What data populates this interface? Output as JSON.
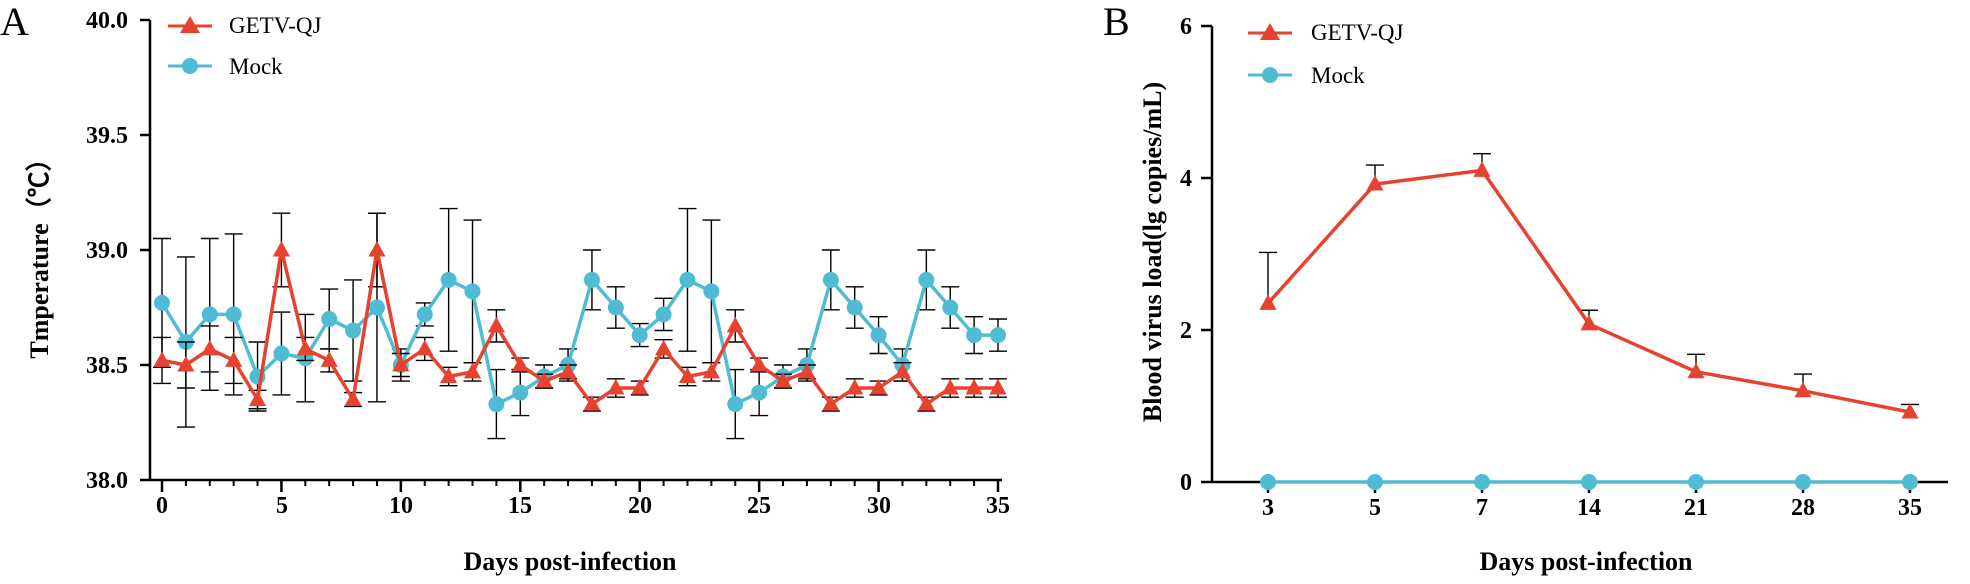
{
  "colors": {
    "getv": "#E5432F",
    "mock": "#4FBCD4",
    "axis": "#000000"
  },
  "chart_data": [
    {
      "panel_label": "A",
      "type": "line",
      "xlabel": "Days post-infection",
      "ylabel": "Tmperature（℃）",
      "xlim": [
        0,
        35
      ],
      "ylim": [
        38.0,
        40.0
      ],
      "xticks": [
        0,
        5,
        10,
        15,
        20,
        25,
        30,
        35
      ],
      "xtick_labels": [
        "0",
        "5",
        "10",
        "15",
        "20",
        "25",
        "30",
        "35"
      ],
      "yticks": [
        38.0,
        38.5,
        39.0,
        39.5,
        40.0
      ],
      "ytick_labels": [
        "38.0",
        "38.5",
        "39.0",
        "39.5",
        "40.0"
      ],
      "grid": false,
      "legend_position": "top-left",
      "x": [
        0,
        1,
        2,
        3,
        4,
        5,
        6,
        7,
        8,
        9,
        10,
        11,
        12,
        13,
        14,
        15,
        16,
        17,
        18,
        19,
        20,
        21,
        22,
        23,
        24,
        25,
        26,
        27,
        28,
        29,
        30,
        31,
        32,
        33,
        34,
        35
      ],
      "series": [
        {
          "name": "GETV-QJ",
          "marker": "triangle",
          "values": [
            38.52,
            38.5,
            38.57,
            38.52,
            38.35,
            39.0,
            38.57,
            38.52,
            38.35,
            39.0,
            38.5,
            38.57,
            38.45,
            38.47,
            38.67,
            38.5,
            38.43,
            38.47,
            38.33,
            38.4,
            38.4,
            38.57,
            38.45,
            38.47,
            38.67,
            38.5,
            38.43,
            38.47,
            38.33,
            38.4,
            38.4,
            38.47,
            38.33,
            38.4,
            38.4,
            38.4
          ],
          "errors": [
            0.1,
            0.1,
            0.1,
            0.1,
            0.04,
            0.16,
            0.05,
            0.05,
            0.03,
            0.16,
            0.05,
            0.05,
            0.04,
            0.04,
            0.07,
            0.03,
            0.03,
            0.03,
            0.03,
            0.04,
            0.03,
            0.04,
            0.04,
            0.04,
            0.07,
            0.03,
            0.03,
            0.03,
            0.03,
            0.04,
            0.03,
            0.04,
            0.03,
            0.04,
            0.04,
            0.04
          ]
        },
        {
          "name": "Mock",
          "marker": "circle",
          "values": [
            38.77,
            38.6,
            38.72,
            38.72,
            38.45,
            38.55,
            38.53,
            38.7,
            38.65,
            38.75,
            38.5,
            38.72,
            38.87,
            38.82,
            38.33,
            38.38,
            38.45,
            38.5,
            38.87,
            38.75,
            38.63,
            38.72,
            38.87,
            38.82,
            38.33,
            38.38,
            38.45,
            38.5,
            38.87,
            38.75,
            38.63,
            38.5,
            38.87,
            38.75,
            38.63,
            38.63
          ],
          "errors": [
            0.28,
            0.37,
            0.33,
            0.35,
            0.15,
            0.18,
            0.19,
            0.13,
            0.22,
            0.41,
            0.07,
            0.05,
            0.31,
            0.31,
            0.15,
            0.1,
            0.05,
            0.07,
            0.13,
            0.09,
            0.05,
            0.07,
            0.31,
            0.31,
            0.15,
            0.1,
            0.05,
            0.07,
            0.13,
            0.09,
            0.08,
            0.07,
            0.13,
            0.09,
            0.08,
            0.07
          ]
        }
      ]
    },
    {
      "panel_label": "B",
      "type": "line",
      "xlabel": "Days post-infection",
      "ylabel": "Blood virus load(lg copies/mL)",
      "categories": [
        "3",
        "5",
        "7",
        "14",
        "21",
        "28",
        "35"
      ],
      "ylim": [
        0,
        6
      ],
      "yticks": [
        0,
        2,
        4,
        6
      ],
      "ytick_labels": [
        "0",
        "2",
        "4",
        "6"
      ],
      "grid": false,
      "legend_position": "top-left",
      "series": [
        {
          "name": "GETV-QJ",
          "marker": "triangle",
          "values": [
            2.35,
            3.92,
            4.1,
            2.08,
            1.45,
            1.2,
            0.92
          ],
          "errors": [
            0.67,
            0.25,
            0.22,
            0.18,
            0.23,
            0.22,
            0.1
          ]
        },
        {
          "name": "Mock",
          "marker": "circle",
          "values": [
            0,
            0,
            0,
            0,
            0,
            0,
            0
          ],
          "errors": [
            0,
            0,
            0,
            0,
            0,
            0,
            0
          ]
        }
      ]
    }
  ]
}
